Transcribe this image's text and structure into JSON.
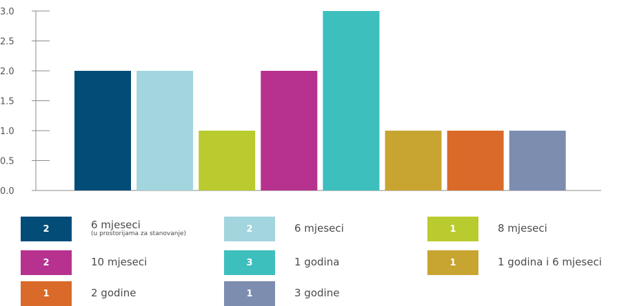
{
  "chart_data": {
    "type": "bar",
    "categories": [
      "6 mjeseci",
      "6 mjeseci",
      "8 mjeseci",
      "10 mjeseci",
      "1 godina",
      "1 godina i 6 mjeseci",
      "2 godine",
      "3 godine"
    ],
    "values": [
      2,
      2,
      1,
      2,
      3,
      1,
      1,
      1
    ],
    "value_labels": [
      "2",
      "2",
      "1",
      "2",
      "3",
      "1",
      "1",
      "1"
    ],
    "colors": [
      "#024c78",
      "#a2d5de",
      "#b9cb2e",
      "#b7318f",
      "#3dbfbe",
      "#c8a431",
      "#d96a29",
      "#7c8db0"
    ],
    "ylim": [
      0,
      3
    ],
    "yticks": [
      "0.0",
      "0.5",
      "1.0",
      "1.5",
      "2.0",
      "2.5",
      "3.0"
    ],
    "grid": false,
    "legend": [
      {
        "value": "2",
        "label": "6 mjeseci",
        "sublabel": "(u prostorijama za stanovanje)",
        "color": "#024c78"
      },
      {
        "value": "2",
        "label": "6 mjeseci",
        "sublabel": "",
        "color": "#a2d5de"
      },
      {
        "value": "1",
        "label": "8 mjeseci",
        "sublabel": "",
        "color": "#b9cb2e"
      },
      {
        "value": "2",
        "label": "10 mjeseci",
        "sublabel": "",
        "color": "#b7318f"
      },
      {
        "value": "3",
        "label": "1 godina",
        "sublabel": "",
        "color": "#3dbfbe"
      },
      {
        "value": "1",
        "label": "1 godina i 6 mjeseci",
        "sublabel": "",
        "color": "#c8a431"
      },
      {
        "value": "1",
        "label": "2 godine",
        "sublabel": "",
        "color": "#d96a29"
      },
      {
        "value": "1",
        "label": "3 godine",
        "sublabel": "",
        "color": "#7c8db0"
      }
    ],
    "legend_placement": "bottom"
  }
}
